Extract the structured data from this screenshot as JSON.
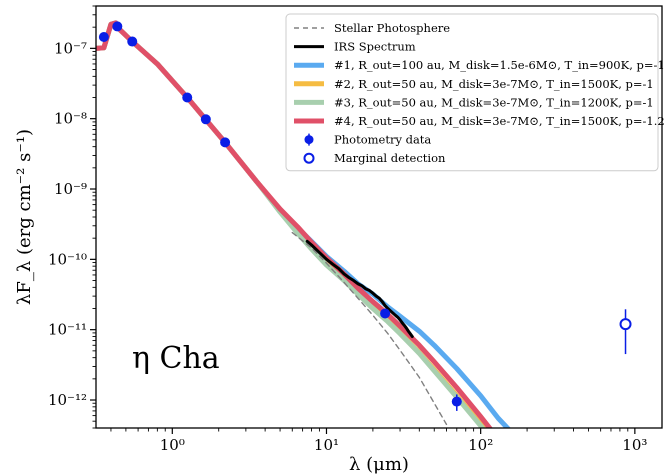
{
  "chart_data": {
    "type": "line",
    "xscale": "log",
    "yscale": "log",
    "xlim": [
      0.32,
      1500
    ],
    "ylim": [
      4e-13,
      4e-07
    ],
    "xlabel": "λ (μm)",
    "ylabel": "λF_λ (erg cm⁻² s⁻¹)",
    "grid": false,
    "legend_placement": "top-right",
    "annotation": "η Cha",
    "x_ticks": [
      {
        "value": 1,
        "label": "10⁰"
      },
      {
        "value": 10,
        "label": "10¹"
      },
      {
        "value": 100,
        "label": "10²"
      },
      {
        "value": 1000,
        "label": "10³"
      }
    ],
    "y_ticks": [
      {
        "value": 1e-12,
        "label": "10⁻¹²"
      },
      {
        "value": 1e-11,
        "label": "10⁻¹¹"
      },
      {
        "value": 1e-10,
        "label": "10⁻¹⁰"
      },
      {
        "value": 1e-09,
        "label": "10⁻⁹"
      },
      {
        "value": 1e-08,
        "label": "10⁻⁸"
      },
      {
        "value": 1e-07,
        "label": "10⁻⁷"
      }
    ],
    "legend": [
      {
        "key": "photosphere",
        "label": "Stellar Photosphere"
      },
      {
        "key": "irs",
        "label": "IRS Spectrum"
      },
      {
        "key": "model1",
        "label": "#1, R_out=100 au, M_disk=1.5e-6M⊙, T_in=900K, p=-1"
      },
      {
        "key": "model2",
        "label": "#2, R_out=50 au, M_disk=3e-7M⊙, T_in=1500K, p=-1"
      },
      {
        "key": "model3",
        "label": "#3, R_out=50 au, M_disk=3e-7M⊙, T_in=1200K, p=-1"
      },
      {
        "key": "model4",
        "label": "#4, R_out=50 au, M_disk=3e-7M⊙, T_in=1500K, p=-1.2"
      },
      {
        "key": "photometry",
        "label": "Photometry data"
      },
      {
        "key": "marginal",
        "label": "Marginal detection"
      }
    ],
    "series": [
      {
        "key": "model1",
        "color": "#5aaaf0",
        "style": "line",
        "x": [
          0.32,
          0.36,
          0.4,
          0.43,
          0.45,
          0.55,
          0.8,
          1.25,
          1.65,
          2.2,
          3.5,
          5,
          6.5,
          8,
          10,
          13,
          16,
          20,
          25,
          30,
          40,
          50,
          70,
          100,
          130,
          160
        ],
        "y": [
          1e-07,
          1.02e-07,
          2.2e-07,
          2.3e-07,
          1.9e-07,
          1.25e-07,
          6e-08,
          2e-08,
          9.7e-09,
          4.6e-09,
          1.3e-09,
          5e-10,
          2.8e-10,
          1.8e-10,
          1.1e-10,
          6.8e-11,
          4.5e-11,
          3.2e-11,
          2.1e-11,
          1.55e-11,
          9.5e-12,
          6e-12,
          2.8e-12,
          1.15e-12,
          5.5e-13,
          3.4e-13
        ]
      },
      {
        "key": "model2",
        "color": "#f5bc42",
        "style": "line",
        "x": [
          0.32,
          0.36,
          0.4,
          0.43,
          0.45,
          0.55,
          0.8,
          1.25,
          1.65,
          2.2,
          3.5,
          5,
          6.5,
          8,
          10,
          13,
          16,
          20,
          25,
          30,
          40,
          50,
          70,
          100,
          120
        ],
        "y": [
          1e-07,
          1.02e-07,
          2.2e-07,
          2.3e-07,
          1.9e-07,
          1.25e-07,
          6e-08,
          2e-08,
          9.7e-09,
          4.6e-09,
          1.3e-09,
          5e-10,
          2.6e-10,
          1.55e-10,
          9e-11,
          5.3e-11,
          3.3e-11,
          2.1e-11,
          1.35e-11,
          9e-12,
          4.7e-12,
          2.7e-12,
          1.15e-12,
          4.5e-13,
          2.6e-13
        ]
      },
      {
        "key": "model3",
        "color": "#a8cfae",
        "style": "line",
        "x": [
          0.32,
          0.36,
          0.4,
          0.43,
          0.45,
          0.55,
          0.8,
          1.25,
          1.65,
          2.2,
          3.5,
          5,
          6.5,
          8,
          10,
          13,
          16,
          20,
          25,
          30,
          40,
          50,
          70,
          100,
          120
        ],
        "y": [
          1e-07,
          1.02e-07,
          2.2e-07,
          2.3e-07,
          1.9e-07,
          1.25e-07,
          6e-08,
          2e-08,
          9.7e-09,
          4.6e-09,
          1.3e-09,
          4.7e-10,
          2.35e-10,
          1.4e-10,
          8.3e-11,
          5e-11,
          3.2e-11,
          2e-11,
          1.3e-11,
          8.8e-12,
          4.6e-12,
          2.6e-12,
          1.1e-12,
          4.3e-13,
          2.5e-13
        ]
      },
      {
        "key": "model4",
        "color": "#e05068",
        "style": "line",
        "x": [
          0.32,
          0.36,
          0.4,
          0.43,
          0.45,
          0.55,
          0.8,
          1.25,
          1.65,
          2.2,
          3.5,
          5,
          6.5,
          8,
          10,
          13,
          16,
          20,
          25,
          30,
          40,
          50,
          70,
          100,
          130
        ],
        "y": [
          1e-07,
          1.02e-07,
          2.2e-07,
          2.3e-07,
          1.9e-07,
          1.25e-07,
          6e-08,
          2e-08,
          9.7e-09,
          4.6e-09,
          1.3e-09,
          5.2e-10,
          2.9e-10,
          1.75e-10,
          1.05e-10,
          6.2e-11,
          3.9e-11,
          2.5e-11,
          1.65e-11,
          1.12e-11,
          6e-12,
          3.5e-12,
          1.5e-12,
          5.8e-13,
          2.8e-13
        ]
      },
      {
        "key": "photosphere",
        "color": "#808080",
        "style": "dashed",
        "x": [
          6,
          8,
          10,
          13,
          16,
          20,
          25,
          30,
          40,
          50,
          60
        ],
        "y": [
          2.4e-10,
          1.45e-10,
          8.8e-11,
          4.7e-11,
          2.8e-11,
          1.6e-11,
          8.8e-12,
          5.1e-12,
          2.1e-12,
          9e-13,
          4.5e-13
        ]
      },
      {
        "key": "irs",
        "color": "#000000",
        "style": "line",
        "x": [
          7.5,
          8,
          9,
          10,
          11,
          12,
          13,
          14,
          15,
          16,
          17,
          18,
          19,
          20,
          21,
          22,
          23,
          24,
          25,
          26,
          27,
          28,
          29,
          30,
          31,
          32,
          33,
          34,
          35,
          36
        ],
        "y": [
          1.8e-10,
          1.6e-10,
          1.25e-10,
          1e-10,
          8.5e-11,
          7.4e-11,
          6.2e-11,
          5.5e-11,
          5e-11,
          4.5e-11,
          4.2e-11,
          3.8e-11,
          3.6e-11,
          3.3e-11,
          3e-11,
          2.8e-11,
          2.5e-11,
          2.2e-11,
          2e-11,
          1.85e-11,
          1.72e-11,
          1.6e-11,
          1.5e-11,
          1.38e-11,
          1.25e-11,
          1.15e-11,
          1.05e-11,
          9.5e-12,
          8.7e-12,
          8e-12
        ]
      }
    ],
    "photometry": {
      "x": [
        0.36,
        0.44,
        0.55,
        1.25,
        1.65,
        2.2,
        24,
        70
      ],
      "y": [
        1.45e-07,
        2.05e-07,
        1.25e-07,
        2e-08,
        9.8e-09,
        4.6e-09,
        1.7e-11,
        9.5e-13
      ],
      "err_lo": [
        0,
        0,
        0,
        0,
        0,
        0,
        2e-12,
        2.5e-13
      ],
      "err_hi": [
        0,
        0,
        0,
        0,
        0,
        0,
        2e-12,
        2.5e-13
      ],
      "color": "#0a1ee6"
    },
    "marginal": {
      "x": [
        870
      ],
      "y": [
        1.2e-11
      ],
      "err_lo": [
        7.5e-12
      ],
      "err_hi": [
        7.5e-12
      ],
      "color": "#0a1ee6"
    }
  }
}
